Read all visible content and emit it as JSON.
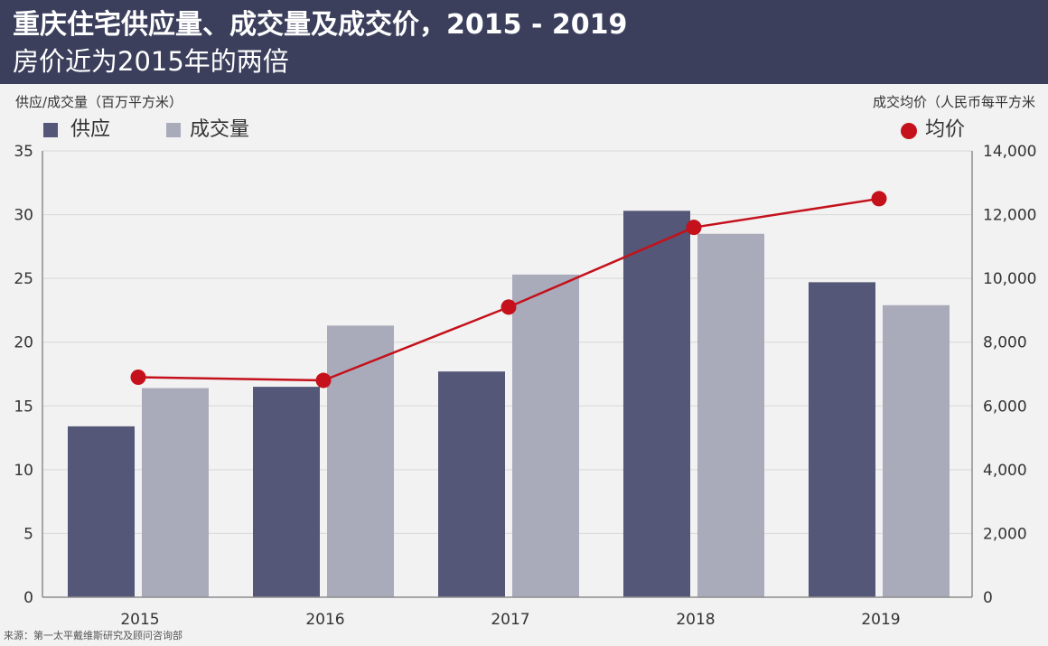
{
  "colors": {
    "header_bg": "#3b3f5c",
    "background": "#f2f2f2",
    "supply": "#545777",
    "sales": "#a9abbb",
    "price": "#c4111b",
    "grid": "#dcdcdc",
    "axis": "#8c8c8c"
  },
  "footer": {
    "source": "来源：第一太平戴维斯研究及顾问咨询部"
  },
  "chart_data": {
    "type": "bar",
    "title": "重庆住宅供应量、成交量及成交价，2015 - 2019",
    "subtitle": "房价近为2015年的两倍",
    "ylabel": "供应/成交量（百万平方米）",
    "y2label": "成交均价（人民币每平方米",
    "categories": [
      "2015",
      "2016",
      "2017",
      "2018",
      "2019"
    ],
    "ylim": [
      0,
      35
    ],
    "y2lim": [
      0,
      14000
    ],
    "yticks": [
      "0",
      "5",
      "10",
      "15",
      "20",
      "25",
      "30",
      "35"
    ],
    "y2ticks": [
      "0",
      "2,000",
      "4,000",
      "6,000",
      "8,000",
      "10,000",
      "12,000",
      "14,000"
    ],
    "grid": true,
    "legend_position": "top",
    "series": [
      {
        "name": "供应",
        "type": "bar",
        "axis": "left",
        "values": [
          13.4,
          16.5,
          17.7,
          30.3,
          24.7
        ]
      },
      {
        "name": "成交量",
        "type": "bar",
        "axis": "left",
        "values": [
          16.4,
          21.3,
          25.3,
          28.5,
          22.9
        ]
      },
      {
        "name": "均价",
        "type": "line",
        "axis": "right",
        "values": [
          6900,
          6800,
          9100,
          11600,
          12500
        ]
      }
    ]
  }
}
